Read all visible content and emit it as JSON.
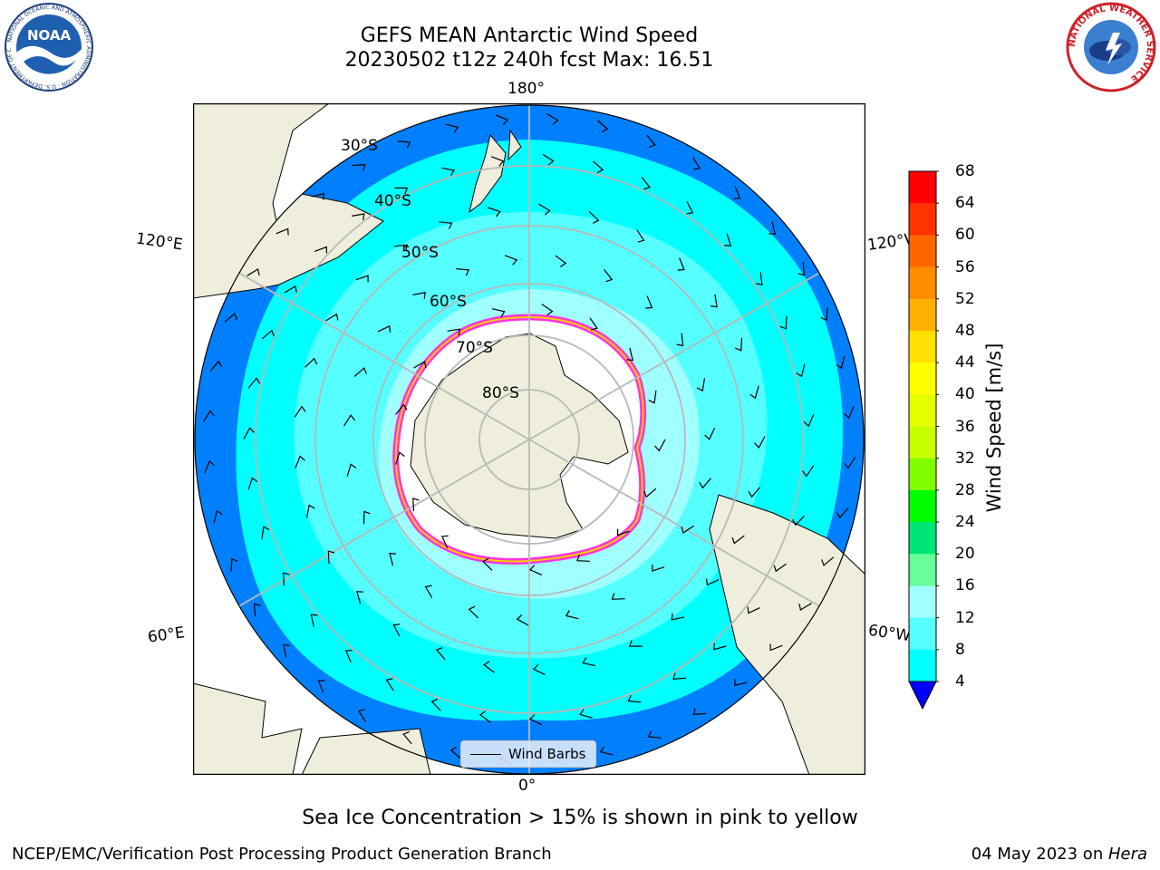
{
  "header": {
    "title_line1": "GEFS MEAN Antarctic Wind Speed",
    "title_line2": "20230502 t12z 240h fcst   Max: 16.51"
  },
  "logos": {
    "left": "noa-logo",
    "right": "national-weather-service-logo",
    "left_text": "NOAA",
    "left_ring_text": "NATIONAL OCEANIC AND ATMOSPHERIC ADMINISTRATION · U.S. DEPARTMENT OF COMMERCE",
    "right_ring_text": "NATIONAL WEATHER SERVICE"
  },
  "map": {
    "projection": "south-polar-stereographic",
    "latitude_labels": [
      "30°S",
      "40°S",
      "50°S",
      "60°S",
      "70°S",
      "80°S"
    ],
    "longitude_labels": {
      "top": "180°",
      "bottom": "0°",
      "upper_left": "120°E",
      "lower_left": "60°E",
      "upper_right": "120°W",
      "lower_right": "60°W"
    },
    "legend_label": "Wind Barbs"
  },
  "colorbar": {
    "label": "Wind Speed [m/s]",
    "ticks": [
      "68",
      "64",
      "60",
      "56",
      "52",
      "48",
      "44",
      "40",
      "36",
      "32",
      "28",
      "24",
      "20",
      "16",
      "12",
      "8",
      "4"
    ],
    "colors": [
      "#ff0000",
      "#ff3300",
      "#ff6600",
      "#ff8c00",
      "#ffb000",
      "#ffe000",
      "#ffff00",
      "#e6ff00",
      "#c8ff00",
      "#80ff00",
      "#00ff00",
      "#00e676",
      "#66ff99",
      "#a0ffff",
      "#55ffff",
      "#00ffff",
      "#0080ff"
    ],
    "underflow_color": "#0000ff"
  },
  "colors": {
    "land": "#efeedc",
    "ice_edge_pink": "#ff33dd",
    "ice_edge_yellow": "#ffcc00",
    "band_blue": "#0080ff",
    "band_cyan": "#00ffff",
    "band_light_cyan": "#55ffff",
    "band_pale": "#a0ffff"
  },
  "note": "Sea Ice Concentration > 15% is shown in pink to yellow",
  "footer": {
    "left": "NCEP/EMC/Verification Post Processing Product Generation Branch",
    "right_date": "04 May 2023 on ",
    "right_system": "Hera"
  }
}
